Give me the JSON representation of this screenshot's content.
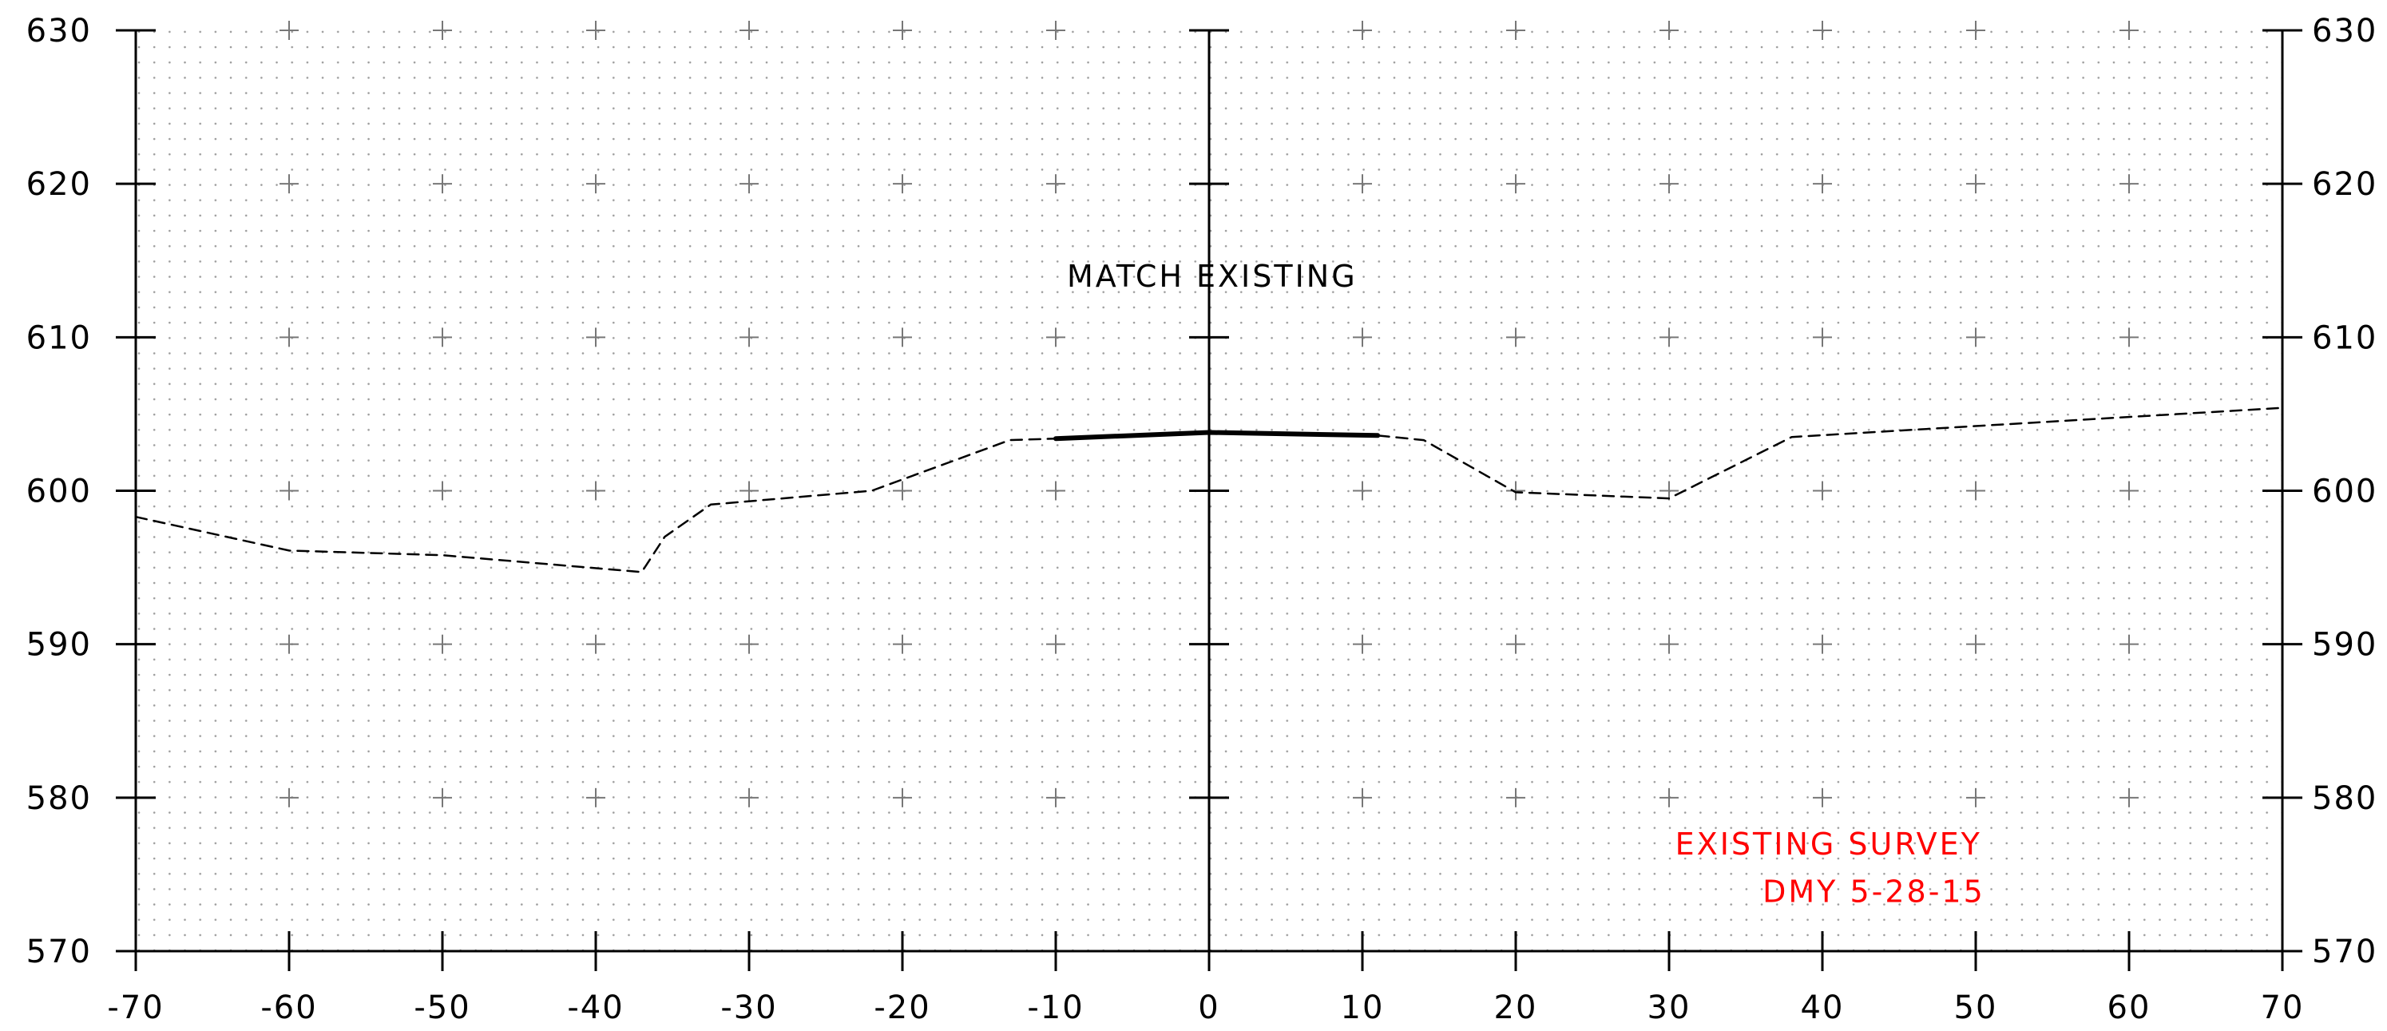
{
  "chart_data": {
    "type": "line",
    "title": "",
    "xlabel": "",
    "ylabel": "",
    "xlim": [
      -70,
      70
    ],
    "ylim": [
      570,
      630
    ],
    "x_ticks": [
      -70,
      -60,
      -50,
      -40,
      -30,
      -20,
      -10,
      0,
      10,
      20,
      30,
      40,
      50,
      60,
      70
    ],
    "x_tick_labels": [
      "-70",
      "-60",
      "-50",
      "-40",
      "-30",
      "-20",
      "-10",
      "0",
      "10",
      "20",
      "30",
      "40",
      "50",
      "60",
      "70"
    ],
    "y_ticks": [
      570,
      580,
      590,
      600,
      610,
      620,
      630
    ],
    "y_tick_labels": [
      "570",
      "580",
      "590",
      "600",
      "610",
      "620",
      "630"
    ],
    "grid": "dotted background with crosses at 10-unit intersections",
    "series": [
      {
        "style": "dashed",
        "color": "#000000",
        "points": [
          [
            -70,
            598.3
          ],
          [
            -60,
            596.1
          ],
          [
            -50,
            595.8
          ],
          [
            -37,
            594.7
          ],
          [
            -35.5,
            597
          ],
          [
            -32.5,
            599.1
          ],
          [
            -22,
            600
          ],
          [
            -13,
            603.3
          ],
          [
            -10,
            603.4
          ],
          [
            0,
            603.8
          ],
          [
            11,
            603.6
          ],
          [
            14,
            603.3
          ],
          [
            20,
            599.9
          ],
          [
            30,
            599.5
          ],
          [
            38,
            603.5
          ],
          [
            70,
            605.4
          ]
        ]
      },
      {
        "style": "solid-thick",
        "color": "#000000",
        "points": [
          [
            -10,
            603.4
          ],
          [
            0,
            603.8
          ],
          [
            11,
            603.6
          ]
        ]
      }
    ],
    "annotations": [
      {
        "text": "MATCH EXISTING",
        "x": 0.2,
        "y": 613.3,
        "color": "#000000",
        "anchor": "middle"
      },
      {
        "text": "EXISTING SURVEY",
        "x": 30.4,
        "y": 576.3,
        "color": "#ff0000",
        "anchor": "start"
      },
      {
        "text": "DMY 5-28-15",
        "x": 36.1,
        "y": 573.2,
        "color": "#ff0000",
        "anchor": "start"
      }
    ]
  }
}
